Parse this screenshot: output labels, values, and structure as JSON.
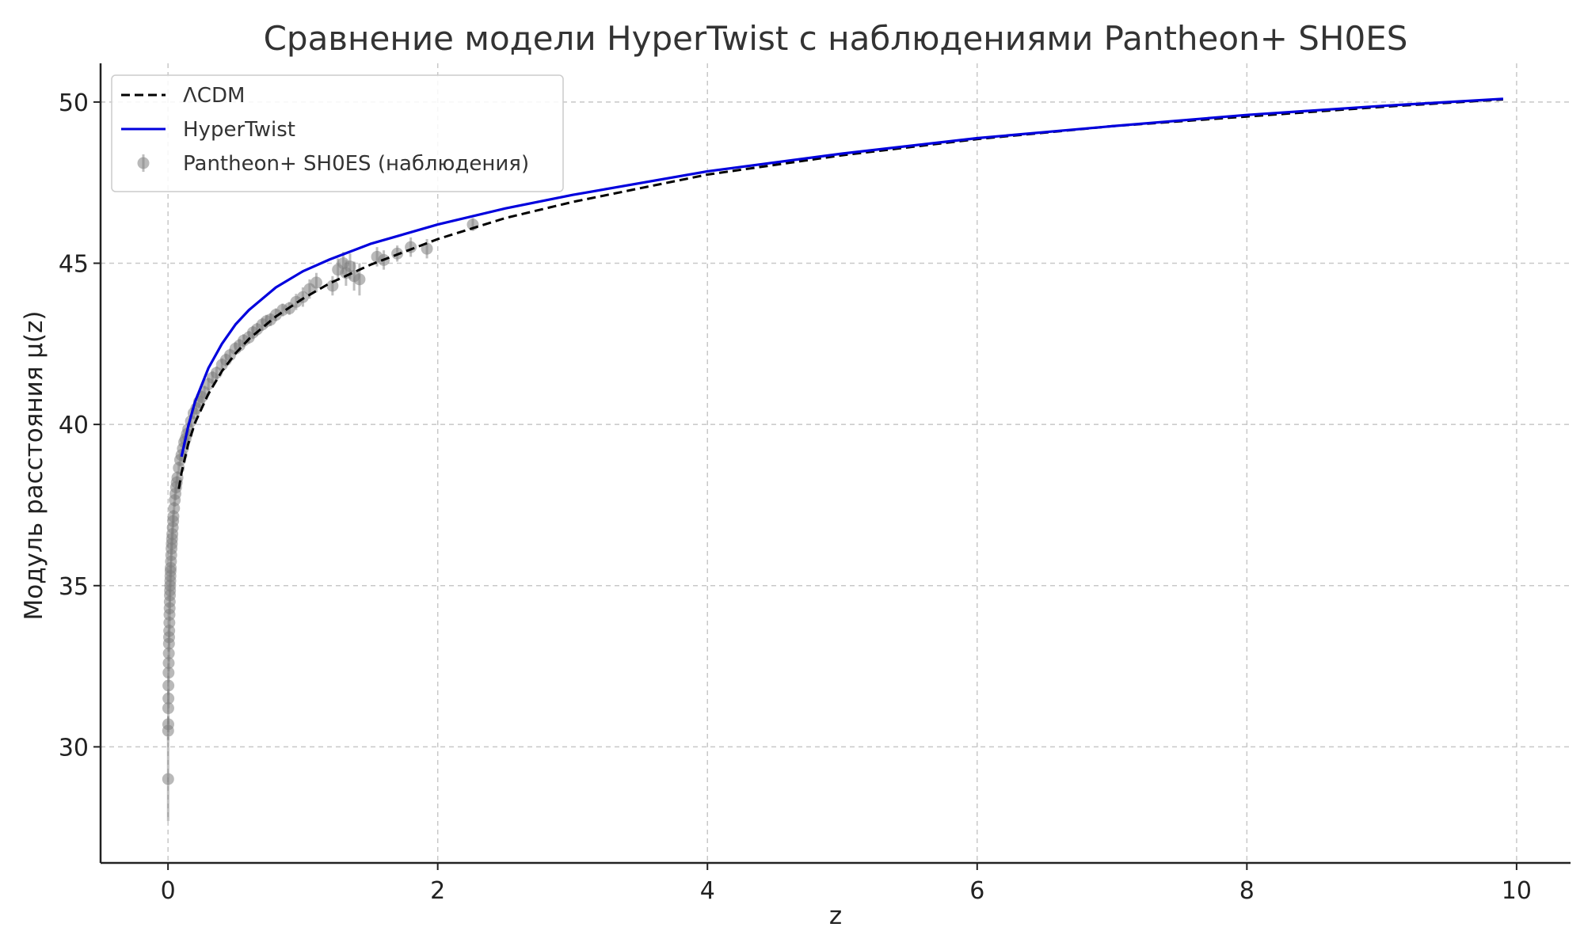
{
  "chart_data": {
    "type": "line",
    "title": "Сравнение модели HyperTwist с наблюдениями Pantheon+ SH0ES",
    "xlabel": "z",
    "ylabel": "Модуль расстояния μ(z)",
    "xlim": [
      -0.5,
      10.4
    ],
    "ylim": [
      26.4,
      51.2
    ],
    "xticks": [
      0,
      2,
      4,
      6,
      8,
      10
    ],
    "yticks": [
      30,
      35,
      40,
      45,
      50
    ],
    "grid": true,
    "legend_position": "top-left",
    "series": [
      {
        "name": "ΛCDM",
        "style": "dashed",
        "color": "#000000",
        "x": [
          0.08,
          0.1,
          0.15,
          0.2,
          0.3,
          0.4,
          0.5,
          0.6,
          0.8,
          1.0,
          1.2,
          1.5,
          2.0,
          2.5,
          3.0,
          4.0,
          5.0,
          6.0,
          7.0,
          8.0,
          9.0,
          9.9
        ],
        "y": [
          38.0,
          38.5,
          39.4,
          40.05,
          40.95,
          41.65,
          42.2,
          42.65,
          43.35,
          43.9,
          44.38,
          44.95,
          45.75,
          46.4,
          46.9,
          47.75,
          48.35,
          48.85,
          49.25,
          49.55,
          49.85,
          50.08
        ]
      },
      {
        "name": "HyperTwist",
        "style": "solid",
        "color": "#0000dd",
        "x": [
          0.1,
          0.15,
          0.2,
          0.3,
          0.4,
          0.5,
          0.6,
          0.8,
          1.0,
          1.2,
          1.5,
          2.0,
          2.5,
          3.0,
          4.0,
          5.0,
          6.0,
          7.0,
          8.0,
          9.0,
          9.9
        ],
        "y": [
          39.0,
          39.95,
          40.7,
          41.75,
          42.5,
          43.1,
          43.55,
          44.25,
          44.75,
          45.12,
          45.6,
          46.2,
          46.7,
          47.12,
          47.85,
          48.4,
          48.88,
          49.25,
          49.6,
          49.88,
          50.1
        ]
      },
      {
        "name": "Pantheon+ SH0ES (наблюдения)",
        "style": "errorbar",
        "color": "#808080",
        "x": [
          0.001,
          0.001,
          0.002,
          0.002,
          0.003,
          0.003,
          0.004,
          0.005,
          0.006,
          0.007,
          0.008,
          0.009,
          0.01,
          0.011,
          0.012,
          0.013,
          0.014,
          0.015,
          0.016,
          0.017,
          0.018,
          0.019,
          0.02,
          0.022,
          0.024,
          0.026,
          0.028,
          0.03,
          0.032,
          0.035,
          0.038,
          0.04,
          0.045,
          0.05,
          0.055,
          0.06,
          0.065,
          0.07,
          0.08,
          0.09,
          0.1,
          0.11,
          0.12,
          0.13,
          0.14,
          0.15,
          0.17,
          0.19,
          0.21,
          0.23,
          0.25,
          0.27,
          0.3,
          0.33,
          0.36,
          0.4,
          0.43,
          0.46,
          0.5,
          0.53,
          0.56,
          0.6,
          0.63,
          0.66,
          0.7,
          0.73,
          0.76,
          0.8,
          0.85,
          0.9,
          0.95,
          1.0,
          1.05,
          1.1,
          1.22,
          1.26,
          1.3,
          1.32,
          1.35,
          1.38,
          1.42,
          1.55,
          1.6,
          1.7,
          1.8,
          1.92,
          2.26
        ],
        "y": [
          29.0,
          30.5,
          30.7,
          31.2,
          31.5,
          31.9,
          32.3,
          32.6,
          32.9,
          33.2,
          33.4,
          33.6,
          33.85,
          34.1,
          34.3,
          34.5,
          34.7,
          34.85,
          35.0,
          35.15,
          35.3,
          35.45,
          35.55,
          35.75,
          35.95,
          36.15,
          36.3,
          36.45,
          36.6,
          36.8,
          37.0,
          37.15,
          37.4,
          37.65,
          37.85,
          38.05,
          38.2,
          38.35,
          38.65,
          38.9,
          39.05,
          39.25,
          39.45,
          39.55,
          39.7,
          39.85,
          40.1,
          40.35,
          40.5,
          40.7,
          40.85,
          41.0,
          41.25,
          41.45,
          41.6,
          41.85,
          42.0,
          42.15,
          42.35,
          42.45,
          42.6,
          42.7,
          42.85,
          42.95,
          43.1,
          43.2,
          43.25,
          43.4,
          43.55,
          43.6,
          43.8,
          43.95,
          44.2,
          44.4,
          44.3,
          44.8,
          45.0,
          44.7,
          44.9,
          44.6,
          44.5,
          45.2,
          45.1,
          45.3,
          45.5,
          45.45,
          46.2
        ],
        "yerr": [
          1.3,
          0.3,
          0.25,
          0.5,
          0.3,
          0.3,
          0.3,
          0.25,
          0.25,
          0.25,
          0.25,
          0.2,
          0.2,
          0.2,
          0.2,
          0.2,
          0.2,
          0.2,
          0.2,
          0.2,
          0.2,
          0.2,
          0.2,
          0.2,
          0.2,
          0.2,
          0.2,
          0.2,
          0.2,
          0.2,
          0.2,
          0.2,
          0.2,
          0.2,
          0.2,
          0.2,
          0.2,
          0.2,
          0.2,
          0.2,
          0.2,
          0.2,
          0.2,
          0.2,
          0.2,
          0.2,
          0.2,
          0.2,
          0.2,
          0.2,
          0.2,
          0.2,
          0.2,
          0.2,
          0.2,
          0.2,
          0.2,
          0.2,
          0.2,
          0.2,
          0.2,
          0.2,
          0.2,
          0.2,
          0.2,
          0.2,
          0.2,
          0.2,
          0.2,
          0.2,
          0.25,
          0.3,
          0.3,
          0.3,
          0.3,
          0.35,
          0.35,
          0.4,
          0.4,
          0.45,
          0.5,
          0.3,
          0.3,
          0.25,
          0.3,
          0.3,
          0.2
        ]
      }
    ]
  }
}
